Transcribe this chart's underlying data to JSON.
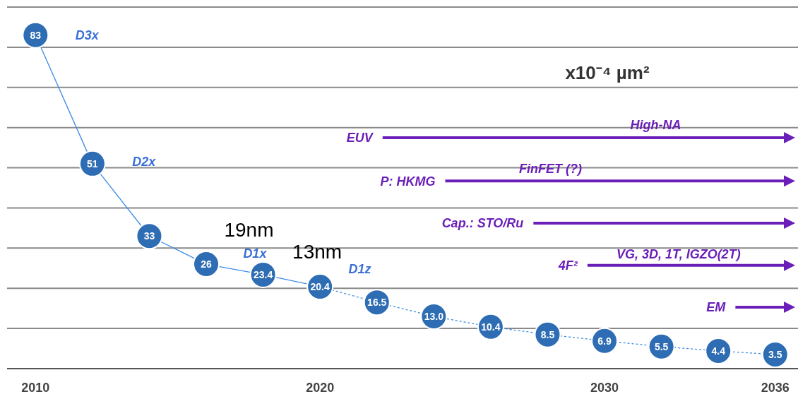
{
  "chart_data": {
    "type": "line",
    "ylabel": "x10⁻⁴ µm²",
    "xlim": [
      2009,
      2036.8
    ],
    "xticks": [
      2010,
      2020,
      2030,
      2036
    ],
    "ylim": [
      0,
      90
    ],
    "yticks": [
      {
        "value": 0,
        "label": null
      },
      {
        "value": 10,
        "label": null
      },
      {
        "value": 20,
        "label": null
      },
      {
        "value": 30,
        "label": null
      },
      {
        "value": 40,
        "label": null
      },
      {
        "value": 50,
        "label": null
      },
      {
        "value": 60,
        "label": null
      },
      {
        "value": 70,
        "label": null
      },
      {
        "value": 80,
        "label": null
      },
      {
        "value": 90,
        "label": null
      }
    ],
    "grid": "y",
    "tick_labels": "x",
    "series": [
      {
        "color": "#2e6db3",
        "x": [
          2010,
          2012,
          2014,
          2016,
          2018,
          2020
        ],
        "values": [
          83,
          51,
          33,
          26,
          23.4,
          20.4
        ],
        "value_labels": [
          "83",
          "51",
          "33",
          "26",
          "23.4",
          "20.4"
        ],
        "marker": "circle",
        "line_style": "solid"
      },
      {
        "color": "#2e6db3",
        "x": [
          2020,
          2022,
          2024,
          2026,
          2028,
          2030,
          2032,
          2034,
          2036
        ],
        "values": [
          20.4,
          16.5,
          13,
          10.4,
          8.5,
          6.9,
          5.5,
          4.4,
          3.5
        ],
        "value_labels": [
          null,
          "16.5",
          "13.0",
          "10.4",
          "8.5",
          "6.9",
          "5.5",
          "4.4",
          "3.5"
        ],
        "marker": "circle",
        "line_style": "dotted"
      }
    ],
    "annotations": [
      "D3x",
      "D2x",
      "D1x",
      "D1z",
      "19nm",
      "13nm",
      "EUV",
      "High-NA",
      "P: HKMG",
      "FinFET (?)",
      "Cap.: STO/Ru",
      "4F²",
      "VG, 3D, 1T, IGZO(2T)",
      "EM"
    ]
  }
}
